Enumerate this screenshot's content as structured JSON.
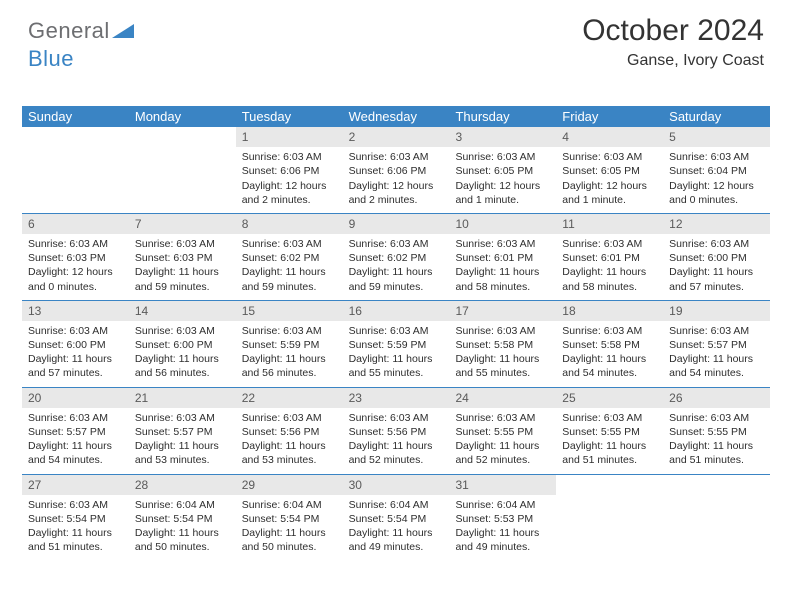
{
  "brand": {
    "part1": "General",
    "part2": "Blue"
  },
  "title": "October 2024",
  "location": "Ganse, Ivory Coast",
  "colors": {
    "header_bg": "#3a84c4",
    "header_text": "#ffffff",
    "daynum_bg": "#e8e8e8",
    "border": "#3a84c4",
    "text": "#2e2e2e",
    "logo_gray": "#6d6e71",
    "logo_blue": "#3a84c4"
  },
  "day_headers": [
    "Sunday",
    "Monday",
    "Tuesday",
    "Wednesday",
    "Thursday",
    "Friday",
    "Saturday"
  ],
  "weeks": [
    [
      {
        "num": "",
        "sunrise": "",
        "sunset": "",
        "daylight": ""
      },
      {
        "num": "",
        "sunrise": "",
        "sunset": "",
        "daylight": ""
      },
      {
        "num": "1",
        "sunrise": "Sunrise: 6:03 AM",
        "sunset": "Sunset: 6:06 PM",
        "daylight": "Daylight: 12 hours and 2 minutes."
      },
      {
        "num": "2",
        "sunrise": "Sunrise: 6:03 AM",
        "sunset": "Sunset: 6:06 PM",
        "daylight": "Daylight: 12 hours and 2 minutes."
      },
      {
        "num": "3",
        "sunrise": "Sunrise: 6:03 AM",
        "sunset": "Sunset: 6:05 PM",
        "daylight": "Daylight: 12 hours and 1 minute."
      },
      {
        "num": "4",
        "sunrise": "Sunrise: 6:03 AM",
        "sunset": "Sunset: 6:05 PM",
        "daylight": "Daylight: 12 hours and 1 minute."
      },
      {
        "num": "5",
        "sunrise": "Sunrise: 6:03 AM",
        "sunset": "Sunset: 6:04 PM",
        "daylight": "Daylight: 12 hours and 0 minutes."
      }
    ],
    [
      {
        "num": "6",
        "sunrise": "Sunrise: 6:03 AM",
        "sunset": "Sunset: 6:03 PM",
        "daylight": "Daylight: 12 hours and 0 minutes."
      },
      {
        "num": "7",
        "sunrise": "Sunrise: 6:03 AM",
        "sunset": "Sunset: 6:03 PM",
        "daylight": "Daylight: 11 hours and 59 minutes."
      },
      {
        "num": "8",
        "sunrise": "Sunrise: 6:03 AM",
        "sunset": "Sunset: 6:02 PM",
        "daylight": "Daylight: 11 hours and 59 minutes."
      },
      {
        "num": "9",
        "sunrise": "Sunrise: 6:03 AM",
        "sunset": "Sunset: 6:02 PM",
        "daylight": "Daylight: 11 hours and 59 minutes."
      },
      {
        "num": "10",
        "sunrise": "Sunrise: 6:03 AM",
        "sunset": "Sunset: 6:01 PM",
        "daylight": "Daylight: 11 hours and 58 minutes."
      },
      {
        "num": "11",
        "sunrise": "Sunrise: 6:03 AM",
        "sunset": "Sunset: 6:01 PM",
        "daylight": "Daylight: 11 hours and 58 minutes."
      },
      {
        "num": "12",
        "sunrise": "Sunrise: 6:03 AM",
        "sunset": "Sunset: 6:00 PM",
        "daylight": "Daylight: 11 hours and 57 minutes."
      }
    ],
    [
      {
        "num": "13",
        "sunrise": "Sunrise: 6:03 AM",
        "sunset": "Sunset: 6:00 PM",
        "daylight": "Daylight: 11 hours and 57 minutes."
      },
      {
        "num": "14",
        "sunrise": "Sunrise: 6:03 AM",
        "sunset": "Sunset: 6:00 PM",
        "daylight": "Daylight: 11 hours and 56 minutes."
      },
      {
        "num": "15",
        "sunrise": "Sunrise: 6:03 AM",
        "sunset": "Sunset: 5:59 PM",
        "daylight": "Daylight: 11 hours and 56 minutes."
      },
      {
        "num": "16",
        "sunrise": "Sunrise: 6:03 AM",
        "sunset": "Sunset: 5:59 PM",
        "daylight": "Daylight: 11 hours and 55 minutes."
      },
      {
        "num": "17",
        "sunrise": "Sunrise: 6:03 AM",
        "sunset": "Sunset: 5:58 PM",
        "daylight": "Daylight: 11 hours and 55 minutes."
      },
      {
        "num": "18",
        "sunrise": "Sunrise: 6:03 AM",
        "sunset": "Sunset: 5:58 PM",
        "daylight": "Daylight: 11 hours and 54 minutes."
      },
      {
        "num": "19",
        "sunrise": "Sunrise: 6:03 AM",
        "sunset": "Sunset: 5:57 PM",
        "daylight": "Daylight: 11 hours and 54 minutes."
      }
    ],
    [
      {
        "num": "20",
        "sunrise": "Sunrise: 6:03 AM",
        "sunset": "Sunset: 5:57 PM",
        "daylight": "Daylight: 11 hours and 54 minutes."
      },
      {
        "num": "21",
        "sunrise": "Sunrise: 6:03 AM",
        "sunset": "Sunset: 5:57 PM",
        "daylight": "Daylight: 11 hours and 53 minutes."
      },
      {
        "num": "22",
        "sunrise": "Sunrise: 6:03 AM",
        "sunset": "Sunset: 5:56 PM",
        "daylight": "Daylight: 11 hours and 53 minutes."
      },
      {
        "num": "23",
        "sunrise": "Sunrise: 6:03 AM",
        "sunset": "Sunset: 5:56 PM",
        "daylight": "Daylight: 11 hours and 52 minutes."
      },
      {
        "num": "24",
        "sunrise": "Sunrise: 6:03 AM",
        "sunset": "Sunset: 5:55 PM",
        "daylight": "Daylight: 11 hours and 52 minutes."
      },
      {
        "num": "25",
        "sunrise": "Sunrise: 6:03 AM",
        "sunset": "Sunset: 5:55 PM",
        "daylight": "Daylight: 11 hours and 51 minutes."
      },
      {
        "num": "26",
        "sunrise": "Sunrise: 6:03 AM",
        "sunset": "Sunset: 5:55 PM",
        "daylight": "Daylight: 11 hours and 51 minutes."
      }
    ],
    [
      {
        "num": "27",
        "sunrise": "Sunrise: 6:03 AM",
        "sunset": "Sunset: 5:54 PM",
        "daylight": "Daylight: 11 hours and 51 minutes."
      },
      {
        "num": "28",
        "sunrise": "Sunrise: 6:04 AM",
        "sunset": "Sunset: 5:54 PM",
        "daylight": "Daylight: 11 hours and 50 minutes."
      },
      {
        "num": "29",
        "sunrise": "Sunrise: 6:04 AM",
        "sunset": "Sunset: 5:54 PM",
        "daylight": "Daylight: 11 hours and 50 minutes."
      },
      {
        "num": "30",
        "sunrise": "Sunrise: 6:04 AM",
        "sunset": "Sunset: 5:54 PM",
        "daylight": "Daylight: 11 hours and 49 minutes."
      },
      {
        "num": "31",
        "sunrise": "Sunrise: 6:04 AM",
        "sunset": "Sunset: 5:53 PM",
        "daylight": "Daylight: 11 hours and 49 minutes."
      },
      {
        "num": "",
        "sunrise": "",
        "sunset": "",
        "daylight": ""
      },
      {
        "num": "",
        "sunrise": "",
        "sunset": "",
        "daylight": ""
      }
    ]
  ]
}
